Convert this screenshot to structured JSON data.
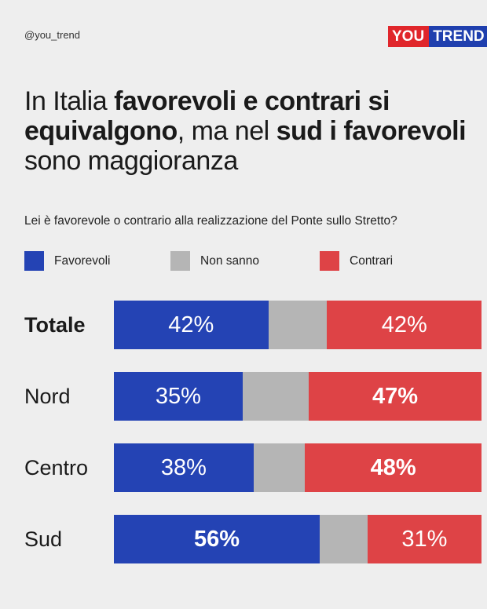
{
  "header": {
    "handle": "@you_trend",
    "logo": {
      "part1": "YOU",
      "part2": "TREND"
    }
  },
  "headline": [
    {
      "text": "In Italia ",
      "bold": false
    },
    {
      "text": "favorevoli e contrari si equivalgono",
      "bold": true
    },
    {
      "text": ", ma nel ",
      "bold": false
    },
    {
      "text": "sud i favorevoli",
      "bold": true
    },
    {
      "text": " sono maggioranza",
      "bold": false
    }
  ],
  "subtitle": "Lei è favorevole o contrario alla realizzazione del Ponte sullo Stretto?",
  "colors": {
    "favorevoli": "#2443b4",
    "non_sanno": "#b5b5b5",
    "contrari": "#de4346",
    "background": "#eeeeee",
    "logo_red": "#e0262b",
    "logo_blue": "#1f3fae"
  },
  "chart_data": {
    "type": "bar",
    "orientation": "horizontal",
    "stacked": true,
    "categories": [
      "Totale",
      "Nord",
      "Centro",
      "Sud"
    ],
    "series": [
      {
        "name": "Favorevoli",
        "values": [
          42,
          35,
          38,
          56
        ],
        "labels": [
          "42%",
          "35%",
          "38%",
          "56%"
        ]
      },
      {
        "name": "Non sanno",
        "values": [
          16,
          18,
          14,
          13
        ],
        "labels": [
          "",
          "",
          "",
          ""
        ]
      },
      {
        "name": "Contrari",
        "values": [
          42,
          47,
          48,
          31
        ],
        "labels": [
          "42%",
          "47%",
          "48%",
          "31%"
        ]
      }
    ],
    "bold_labels": {
      "Favorevoli": [
        false,
        false,
        false,
        true
      ],
      "Contrari": [
        false,
        true,
        true,
        false
      ]
    },
    "bold_categories": [
      "Totale"
    ],
    "xlim": [
      0,
      100
    ]
  }
}
